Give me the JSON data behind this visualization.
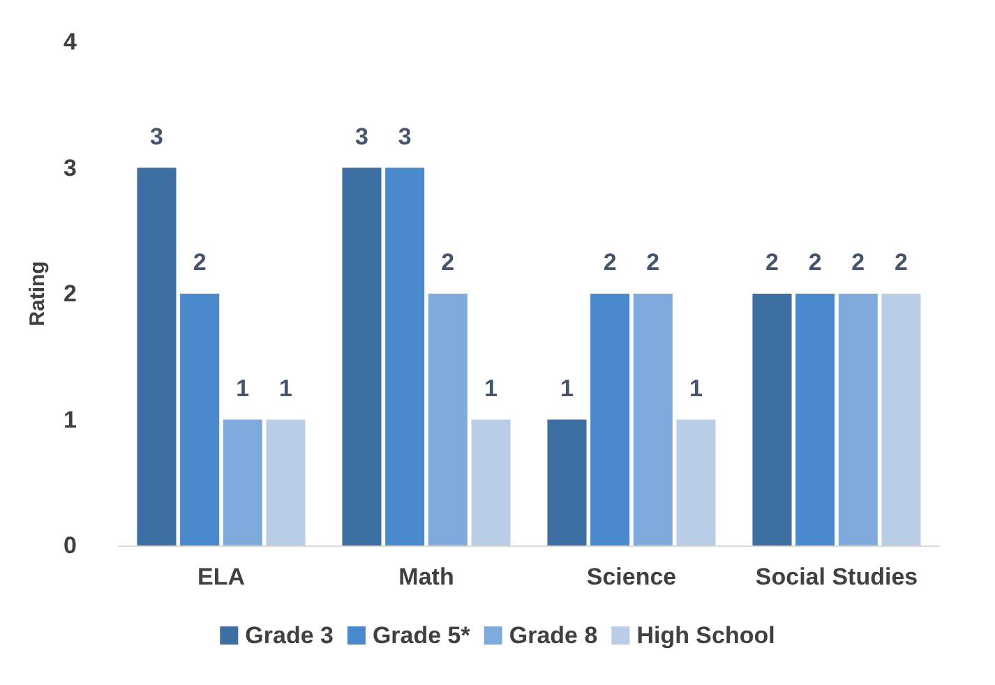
{
  "chart_data": {
    "type": "bar",
    "ylabel": "Rating",
    "categories": [
      "ELA",
      "Math",
      "Science",
      "Social Studies"
    ],
    "series": [
      {
        "name": "Grade 3",
        "color": "#3d6fa3",
        "values": [
          3,
          3,
          1,
          2
        ]
      },
      {
        "name": "Grade 5*",
        "color": "#4a89cc",
        "values": [
          2,
          3,
          2,
          2
        ]
      },
      {
        "name": "Grade 8",
        "color": "#7fabdc",
        "values": [
          1,
          2,
          2,
          2
        ]
      },
      {
        "name": "High School",
        "color": "#b9cde6",
        "values": [
          1,
          1,
          1,
          2
        ]
      }
    ],
    "ylim": [
      0,
      4
    ],
    "yticks": [
      0,
      1,
      2,
      3,
      4
    ],
    "grid": false,
    "legend": "bottom",
    "data_labels": true
  }
}
